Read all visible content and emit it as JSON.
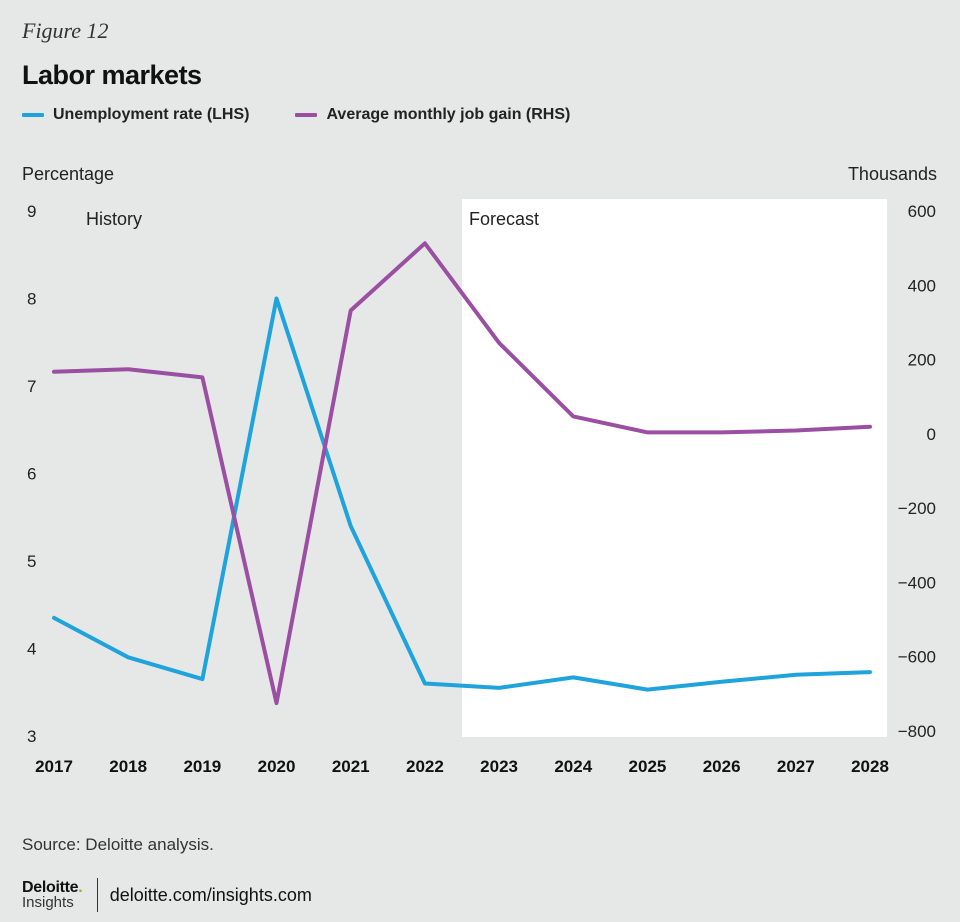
{
  "figure_label": "Figure 12",
  "title": "Labor markets",
  "legend": [
    {
      "label": "Unemployment rate (LHS)",
      "color": "#1fa3dc"
    },
    {
      "label": "Average monthly job gain (RHS)",
      "color": "#9b4fa3"
    }
  ],
  "left_axis_title": "Percentage",
  "right_axis_title": "Thousands",
  "source": "Source: Deloitte analysis.",
  "footer": {
    "brand_name": "Deloitte",
    "brand_dot": ".",
    "brand_sub": "Insights",
    "url": "deloitte.com/insights.com"
  },
  "chart_data": {
    "type": "line",
    "x": [
      "2017",
      "2018",
      "2019",
      "2020",
      "2021",
      "2022",
      "2023",
      "2024",
      "2025",
      "2026",
      "2027",
      "2028"
    ],
    "left_axis": {
      "ylim": [
        3,
        9
      ],
      "ticks": [
        "3",
        "4",
        "5",
        "6",
        "7",
        "8",
        "9"
      ]
    },
    "right_axis": {
      "ylim": [
        -800,
        600
      ],
      "ticks": [
        "−800",
        "−600",
        "−400",
        "−200",
        "0",
        "200",
        "400",
        "600"
      ]
    },
    "regions": [
      {
        "label": "History",
        "from": "2017",
        "to": "2022",
        "shade": "#e6e7e7"
      },
      {
        "label": "Forecast",
        "from": "2023",
        "to": "2028",
        "shade": "#ffffff"
      }
    ],
    "series": [
      {
        "name": "Unemployment rate (LHS)",
        "axis": "left",
        "color": "#1fa3dc",
        "values": [
          4.35,
          3.9,
          3.65,
          8.0,
          5.4,
          3.6,
          3.55,
          3.67,
          3.53,
          3.62,
          3.7,
          3.73
        ]
      },
      {
        "name": "Average monthly job gain (RHS)",
        "axis": "right",
        "color": "#9b4fa3",
        "values": [
          167,
          174,
          152,
          -725,
          332,
          513,
          245,
          47,
          4,
          4,
          9,
          19
        ]
      }
    ],
    "grid": false
  }
}
